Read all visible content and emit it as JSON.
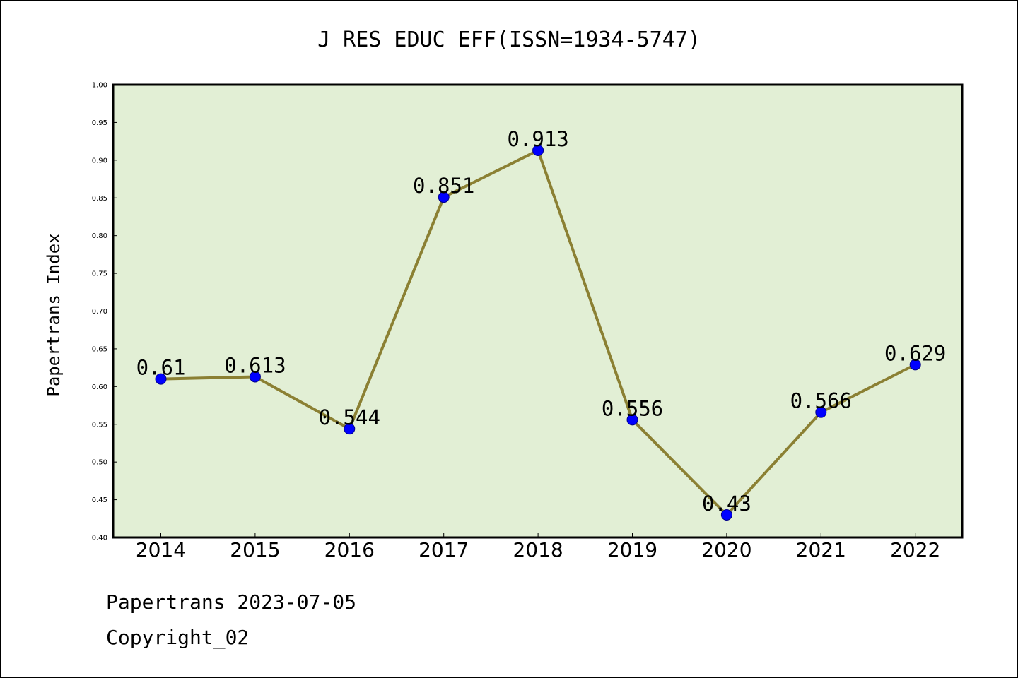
{
  "colors": {
    "plot_background": "#e2efd5",
    "line": "#8b8033",
    "marker_fill": "#0000ff",
    "marker_edge": "#00008b",
    "axis": "#000000"
  },
  "footer": {
    "line1": "Papertrans 2023-07-05",
    "line2": "Copyright_02"
  },
  "chart_data": {
    "type": "line",
    "title": "J RES EDUC EFF(ISSN=1934-5747)",
    "xlabel": "",
    "ylabel": "Papertrans Index",
    "categories": [
      "2014",
      "2015",
      "2016",
      "2017",
      "2018",
      "2019",
      "2020",
      "2021",
      "2022"
    ],
    "values": [
      0.61,
      0.613,
      0.544,
      0.851,
      0.913,
      0.556,
      0.43,
      0.566,
      0.629
    ],
    "data_labels": [
      "0.61",
      "0.613",
      "0.544",
      "0.851",
      "0.913",
      "0.556",
      "0.43",
      "0.566",
      "0.629"
    ],
    "ylim": [
      0.4,
      1.0
    ],
    "yticks": [
      "0.40",
      "0.45",
      "0.50",
      "0.55",
      "0.60",
      "0.65",
      "0.70",
      "0.75",
      "0.80",
      "0.85",
      "0.90",
      "0.95",
      "1.00"
    ],
    "grid": false,
    "legend": "none",
    "marker": "circle"
  }
}
